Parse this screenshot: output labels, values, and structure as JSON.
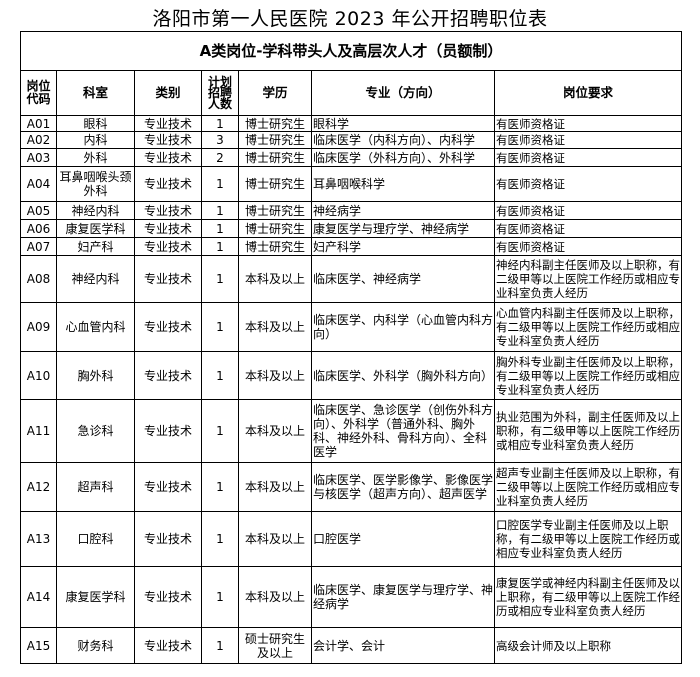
{
  "title": "洛阳市第一人民医院 2023 年公开招聘职位表",
  "section_title": "A类岗位-学科带头人及高层次人才（员额制）",
  "headers": [
    "岗位代码",
    "科室",
    "类别",
    "计划招聘人数",
    "学历",
    "专业（方向）",
    "岗位要求"
  ],
  "rows": [
    {
      "code": "A01",
      "dept": "眼科",
      "type": "专业技术",
      "count": "1",
      "edu": "博士研究生",
      "major": "眼科学",
      "req": "有医师资格证"
    },
    {
      "code": "A02",
      "dept": "内科",
      "type": "专业技术",
      "count": "3",
      "edu": "博士研究生",
      "major": "临床医学（内科方向）、内科学",
      "req": "有医师资格证"
    },
    {
      "code": "A03",
      "dept": "外科",
      "type": "专业技术",
      "count": "2",
      "edu": "博士研究生",
      "major": "临床医学（外科方向）、外科学",
      "req": "有医师资格证"
    },
    {
      "code": "A04",
      "dept": "耳鼻咽喉头颈外科",
      "type": "专业技术",
      "count": "1",
      "edu": "博士研究生",
      "major": "耳鼻咽喉科学",
      "req": "有医师资格证"
    },
    {
      "code": "A05",
      "dept": "神经内科",
      "type": "专业技术",
      "count": "1",
      "edu": "博士研究生",
      "major": "神经病学",
      "req": "有医师资格证"
    },
    {
      "code": "A06",
      "dept": "康复医学科",
      "type": "专业技术",
      "count": "1",
      "edu": "博士研究生",
      "major": "康复医学与理疗学、神经病学",
      "req": "有医师资格证"
    },
    {
      "code": "A07",
      "dept": "妇产科",
      "type": "专业技术",
      "count": "1",
      "edu": "博士研究生",
      "major": "妇产科学",
      "req": "有医师资格证"
    },
    {
      "code": "A08",
      "dept": "神经内科",
      "type": "专业技术",
      "count": "1",
      "edu": "本科及以上",
      "major": "临床医学、神经病学",
      "req": "神经内科副主任医师及以上职称，有二级甲等以上医院工作经历或相应专业科室负责人经历"
    },
    {
      "code": "A09",
      "dept": "心血管内科",
      "type": "专业技术",
      "count": "1",
      "edu": "本科及以上",
      "major": "临床医学、内科学（心血管内科方向）",
      "req": "心血管内科副主任医师及以上职称，有二级甲等以上医院工作经历或相应专业科室负责人经历"
    },
    {
      "code": "A10",
      "dept": "胸外科",
      "type": "专业技术",
      "count": "1",
      "edu": "本科及以上",
      "major": "临床医学、外科学（胸外科方向）",
      "req": "胸外科专业副主任医师及以上职称，有二级甲等以上医院工作经历或相应专业科室负责人经历"
    },
    {
      "code": "A11",
      "dept": "急诊科",
      "type": "专业技术",
      "count": "1",
      "edu": "本科及以上",
      "major": "临床医学、急诊医学（创伤外科方向）、外科学（普通外科、胸外科、神经外科、骨科方向）、全科医学",
      "req": "执业范围为外科，副主任医师及以上职称，有二级甲等以上医院工作经历或相应专业科室负责人经历"
    },
    {
      "code": "A12",
      "dept": "超声科",
      "type": "专业技术",
      "count": "1",
      "edu": "本科及以上",
      "major": "临床医学、医学影像学、影像医学与核医学（超声方向）、超声医学",
      "req": "超声专业副主任医师及以上职称，有二级甲等以上医院工作经历或相应专业科室负责人经历"
    },
    {
      "code": "A13",
      "dept": "口腔科",
      "type": "专业技术",
      "count": "1",
      "edu": "本科及以上",
      "major": "口腔医学",
      "req": "口腔医学专业副主任医师及以上职称，有二级甲等以上医院工作经历或相应专业科室负责人经历"
    },
    {
      "code": "A14",
      "dept": "康复医学科",
      "type": "专业技术",
      "count": "1",
      "edu": "本科及以上",
      "major": "临床医学、康复医学与理疗学、神经病学",
      "req": "康复医学或神经内科副主任医师及以上职称，有二级甲等以上医院工作经历或相应专业科室负责人经历"
    },
    {
      "code": "A15",
      "dept": "财务科",
      "type": "专业技术",
      "count": "1",
      "edu": "硕士研究生及以上",
      "major": "会计学、会计",
      "req": "高级会计师及以上职称"
    }
  ]
}
